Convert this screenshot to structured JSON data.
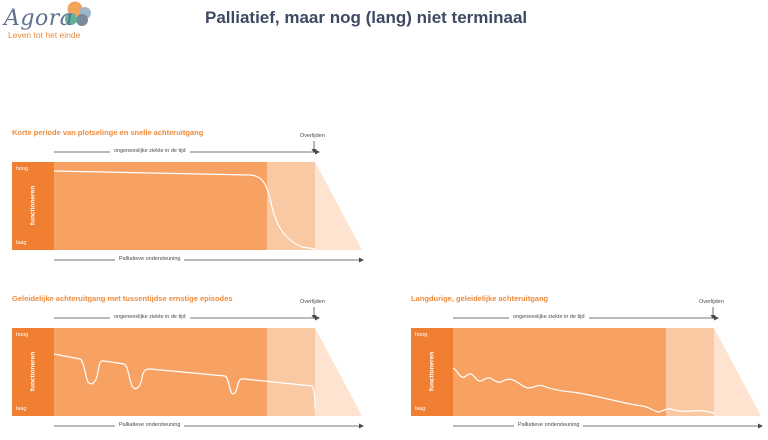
{
  "logo": {
    "name": "Agora",
    "tagline": "Leven tot het einde"
  },
  "title": "Palliatief, maar nog (lang) niet terminaal",
  "colors": {
    "brand_orange": "#ef8a3a",
    "axis_band": "#f07f32",
    "main_area": "#f7a163",
    "terminal_area": "#f9c9a4",
    "fade_area": "#fde3d0",
    "title_text": "#3e4a63"
  },
  "panels": [
    {
      "heading": "Korte periode van plotselinge en snelle achteruitgang",
      "time_label": "ongeneeslijke ziekte in de tijd",
      "death_label": "Overlijden",
      "y_label": "functioneren",
      "y_high": "hoog",
      "y_low": "laag",
      "support_label": "Palliatieve ondersteuning",
      "curve": "sudden"
    },
    {
      "heading": "Geleidelijke achteruitgang met tussentijdse ernstige episodes",
      "time_label": "ongeneeslijke ziekte in de tijd",
      "death_label": "Overlijden",
      "y_label": "functioneren",
      "y_high": "hoog",
      "y_low": "laag",
      "support_label": "Palliatieve ondersteuning",
      "curve": "episodes"
    },
    {
      "heading": "Langdurige, geleidelijke achteruitgang",
      "time_label": "ongeneeslijke ziekte in de tijd",
      "death_label": "Overlijden",
      "y_label": "functioneren",
      "y_high": "hoog",
      "y_low": "laag",
      "support_label": "Palliatieve ondersteuning",
      "curve": "gradual"
    }
  ]
}
